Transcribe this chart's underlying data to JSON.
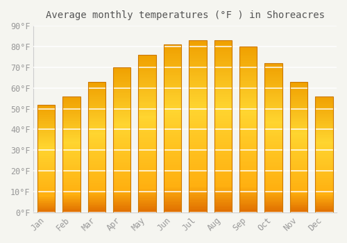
{
  "title": "Average monthly temperatures (°F ) in Shoreacres",
  "months": [
    "Jan",
    "Feb",
    "Mar",
    "Apr",
    "May",
    "Jun",
    "Jul",
    "Aug",
    "Sep",
    "Oct",
    "Nov",
    "Dec"
  ],
  "values": [
    52,
    56,
    63,
    70,
    76,
    81,
    83,
    83,
    80,
    72,
    63,
    56
  ],
  "bar_color_main": "#FFA520",
  "bar_color_light": "#FFD060",
  "bar_edge_color": "#CC7700",
  "background_color": "#F5F5F0",
  "grid_color": "#E8E8E8",
  "text_color": "#999999",
  "title_color": "#555555",
  "ylim": [
    0,
    90
  ],
  "yticks": [
    0,
    10,
    20,
    30,
    40,
    50,
    60,
    70,
    80,
    90
  ],
  "title_fontsize": 10,
  "tick_fontsize": 8.5,
  "title_font": "monospace",
  "tick_font": "monospace",
  "bar_width": 0.7
}
